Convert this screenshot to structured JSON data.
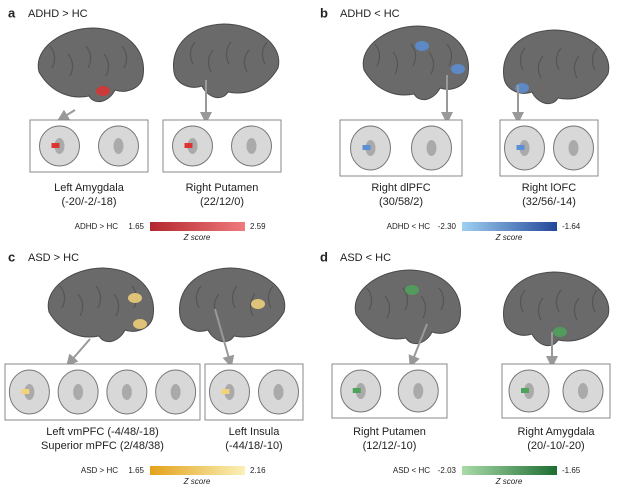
{
  "panels": [
    {
      "letter": "a",
      "title": "ADHD > HC",
      "regions": [
        {
          "lines": [
            "Left  Amygdala",
            "(-20/-2/-18)"
          ]
        },
        {
          "lines": [
            "Right Putamen",
            "(22/12/0)"
          ]
        }
      ],
      "colorbar": {
        "label": "ADHD > HC",
        "min": "1.65",
        "max": "2.59",
        "axis_label": "Z score"
      }
    },
    {
      "letter": "b",
      "title": "ADHD < HC",
      "regions": [
        {
          "lines": [
            "Right dlPFC",
            "(30/58/2)"
          ]
        },
        {
          "lines": [
            "Right lOFC",
            "(32/56/-14)"
          ]
        }
      ],
      "colorbar": {
        "label": "ADHD < HC",
        "min": "-2.30",
        "max": "-1.64",
        "axis_label": "Z score"
      }
    },
    {
      "letter": "c",
      "title": "ASD > HC",
      "regions": [
        {
          "lines": [
            "Left vmPFC (-4/48/-18)",
            "Superior mPFC (2/48/38)"
          ]
        },
        {
          "lines": [
            "Left Insula",
            "(-44/18/-10)"
          ]
        }
      ],
      "colorbar": {
        "label": "ASD > HC",
        "min": "1.65",
        "max": "2.16",
        "axis_label": "Z score"
      }
    },
    {
      "letter": "d",
      "title": "ASD < HC",
      "regions": [
        {
          "lines": [
            "Right Putamen",
            "(12/12/-10)"
          ]
        },
        {
          "lines": [
            "Right Amygdala",
            "(20/-10/-20)"
          ]
        }
      ],
      "colorbar": {
        "label": "ASD < HC",
        "min": "-2.03",
        "max": "-1.65",
        "axis_label": "Z score"
      }
    }
  ]
}
